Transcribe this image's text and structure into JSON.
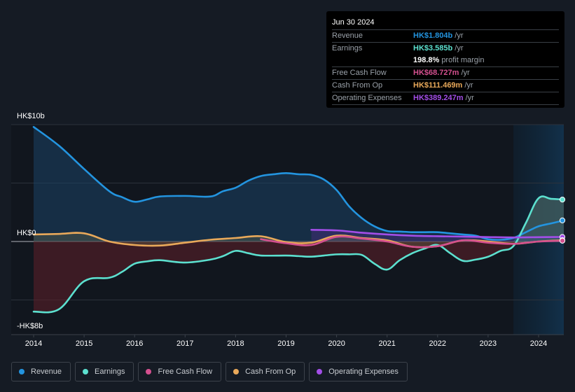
{
  "tooltip": {
    "date": "Jun 30 2024",
    "rows": [
      {
        "label": "Revenue",
        "value": "HK$1.804b",
        "unit": "/yr",
        "color": "#2394df"
      },
      {
        "label": "Earnings",
        "value": "HK$3.585b",
        "unit": "/yr",
        "color": "#5ce0cf"
      },
      {
        "label": "",
        "value": "198.8%",
        "unit": "profit margin",
        "color": "#ffffff"
      },
      {
        "label": "Free Cash Flow",
        "value": "HK$68.727m",
        "unit": "/yr",
        "color": "#d4508f"
      },
      {
        "label": "Cash From Op",
        "value": "HK$111.469m",
        "unit": "/yr",
        "color": "#e9a95a"
      },
      {
        "label": "Operating Expenses",
        "value": "HK$389.247m",
        "unit": "/yr",
        "color": "#a34ee8"
      }
    ]
  },
  "legend": [
    {
      "label": "Revenue",
      "color": "#2394df"
    },
    {
      "label": "Earnings",
      "color": "#5ce0cf"
    },
    {
      "label": "Free Cash Flow",
      "color": "#d4508f"
    },
    {
      "label": "Cash From Op",
      "color": "#e9a95a"
    },
    {
      "label": "Operating Expenses",
      "color": "#a34ee8"
    }
  ],
  "chart_data": {
    "type": "line",
    "title": "",
    "xlabel": "",
    "ylabel": "",
    "ylim": [
      -8,
      10
    ],
    "xlim": [
      2013.55,
      2024.5
    ],
    "y_unit": "HK$ billions",
    "y_tick_labels": [
      {
        "value": 10,
        "label": "HK$10b"
      },
      {
        "value": 0,
        "label": "HK$0"
      },
      {
        "value": -8,
        "label": "-HK$8b"
      }
    ],
    "gridlines": [
      10,
      5,
      0,
      -5
    ],
    "x_ticks": [
      2014,
      2015,
      2016,
      2017,
      2018,
      2019,
      2020,
      2021,
      2022,
      2023,
      2024
    ],
    "forecast_shade_start": 2023.5,
    "series": [
      {
        "name": "Revenue",
        "color": "#2394df",
        "fill": true,
        "x": [
          2014.0,
          2014.5,
          2015.0,
          2015.5,
          2015.75,
          2016.0,
          2016.25,
          2016.5,
          2017.0,
          2017.5,
          2017.75,
          2018.0,
          2018.25,
          2018.5,
          2018.75,
          2019.0,
          2019.25,
          2019.5,
          2019.75,
          2020.0,
          2020.25,
          2020.5,
          2020.75,
          2021.0,
          2021.25,
          2021.5,
          2021.75,
          2022.0,
          2022.25,
          2022.5,
          2022.75,
          2023.0,
          2023.25,
          2023.5,
          2023.75,
          2024.0,
          2024.25,
          2024.5
        ],
        "values": [
          9.8,
          8.2,
          6.2,
          4.3,
          3.8,
          3.4,
          3.6,
          3.85,
          3.9,
          3.85,
          4.3,
          4.6,
          5.2,
          5.6,
          5.75,
          5.85,
          5.75,
          5.7,
          5.3,
          4.4,
          3.0,
          2.0,
          1.3,
          0.9,
          0.85,
          0.8,
          0.8,
          0.8,
          0.7,
          0.6,
          0.5,
          0.2,
          0.15,
          0.3,
          0.8,
          1.3,
          1.55,
          1.804
        ]
      },
      {
        "name": "Earnings",
        "color": "#5ce0cf",
        "fill": true,
        "x": [
          2014.0,
          2014.5,
          2015.0,
          2015.5,
          2015.75,
          2016.0,
          2016.25,
          2016.5,
          2017.0,
          2017.5,
          2017.75,
          2018.0,
          2018.25,
          2018.5,
          2019.0,
          2019.25,
          2019.5,
          2019.75,
          2020.0,
          2020.25,
          2020.5,
          2020.75,
          2021.0,
          2021.25,
          2021.5,
          2021.75,
          2022.0,
          2022.25,
          2022.5,
          2022.75,
          2023.0,
          2023.25,
          2023.5,
          2023.75,
          2024.0,
          2024.25,
          2024.5
        ],
        "values": [
          -6.0,
          -5.8,
          -3.4,
          -3.1,
          -2.6,
          -1.9,
          -1.7,
          -1.6,
          -1.8,
          -1.55,
          -1.25,
          -0.8,
          -1.0,
          -1.2,
          -1.2,
          -1.25,
          -1.3,
          -1.2,
          -1.1,
          -1.1,
          -1.15,
          -1.9,
          -2.4,
          -1.6,
          -1.0,
          -0.6,
          -0.3,
          -1.0,
          -1.65,
          -1.55,
          -1.3,
          -0.8,
          -0.4,
          1.6,
          3.7,
          3.65,
          3.585
        ]
      },
      {
        "name": "Free Cash Flow",
        "color": "#d4508f",
        "fill": false,
        "x": [
          2018.5,
          2019.0,
          2019.5,
          2020.0,
          2020.5,
          2021.0,
          2021.5,
          2022.0,
          2022.5,
          2023.0,
          2023.5,
          2024.0,
          2024.5
        ],
        "values": [
          0.2,
          -0.15,
          -0.3,
          0.4,
          0.25,
          0.0,
          -0.45,
          -0.4,
          0.1,
          -0.1,
          -0.2,
          0.0,
          0.069
        ]
      },
      {
        "name": "Cash From Op",
        "color": "#e9a95a",
        "fill": true,
        "x": [
          2014.0,
          2014.5,
          2015.0,
          2015.5,
          2016.0,
          2016.5,
          2017.0,
          2017.5,
          2018.0,
          2018.5,
          2019.0,
          2019.5,
          2020.0,
          2020.5,
          2021.0,
          2021.5,
          2022.0,
          2022.5,
          2023.0,
          2023.5,
          2024.0,
          2024.5
        ],
        "values": [
          0.6,
          0.65,
          0.7,
          0.0,
          -0.3,
          -0.35,
          -0.1,
          0.15,
          0.3,
          0.45,
          -0.05,
          -0.1,
          0.5,
          0.3,
          0.1,
          -0.45,
          -0.4,
          0.1,
          0.0,
          -0.2,
          0.0,
          0.111
        ]
      },
      {
        "name": "Operating Expenses",
        "color": "#a34ee8",
        "fill": true,
        "x": [
          2019.5,
          2020.0,
          2020.5,
          2021.0,
          2021.5,
          2022.0,
          2022.5,
          2023.0,
          2023.5,
          2024.0,
          2024.5
        ],
        "values": [
          1.0,
          0.95,
          0.75,
          0.6,
          0.5,
          0.45,
          0.42,
          0.38,
          0.35,
          0.37,
          0.389
        ]
      }
    ]
  }
}
